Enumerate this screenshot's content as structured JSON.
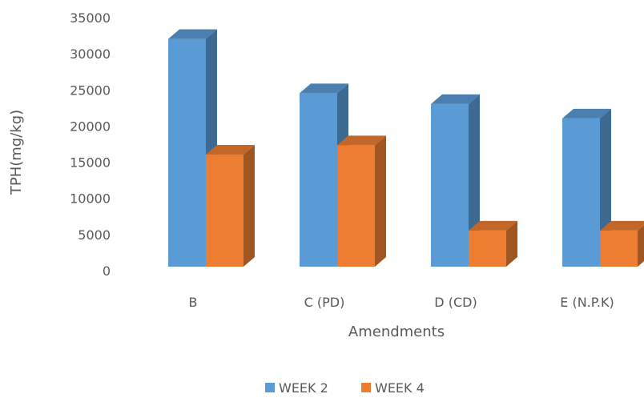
{
  "chart_data": {
    "type": "bar",
    "title": "",
    "xlabel": "Amendments",
    "ylabel": "TPH(mg/kg)",
    "categories": [
      "B",
      "C (PD)",
      "D (CD)",
      "E (N.P.K)"
    ],
    "series": [
      {
        "name": "WEEK 2",
        "values": [
          31500,
          24000,
          22500,
          20500
        ],
        "color": "#5B9BD5"
      },
      {
        "name": "WEEK 4",
        "values": [
          15500,
          16800,
          5000,
          5000
        ],
        "color": "#ED7D31"
      }
    ],
    "ylim": [
      0,
      35000
    ],
    "yticks": [
      0,
      5000,
      10000,
      15000,
      20000,
      25000,
      30000,
      35000
    ],
    "grid": false,
    "legend": "bottom",
    "style": "3d-clustered-column"
  }
}
